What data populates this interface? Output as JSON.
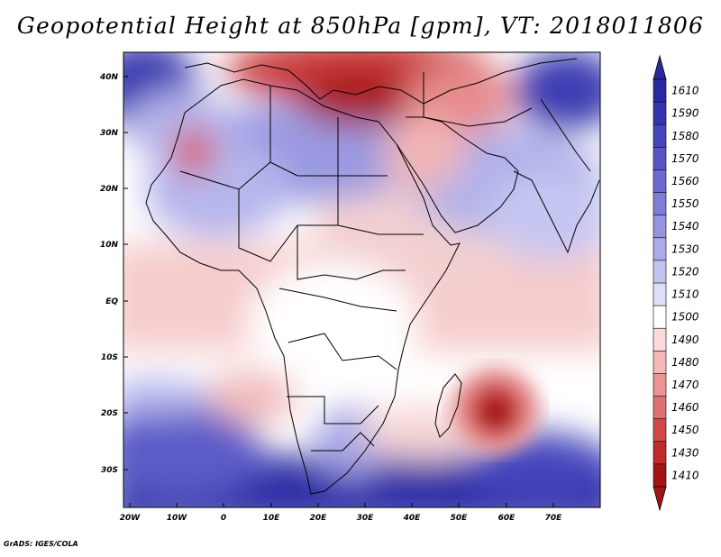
{
  "title": "Geopotential Height at 850hPa [gpm], VT: 2018011806",
  "credit": "GrADS: IGES/COLA",
  "map": {
    "y_axis_labels": [
      "40N",
      "30N",
      "20N",
      "10N",
      "EQ",
      "10S",
      "20S",
      "30S"
    ],
    "x_axis_labels": [
      "20W",
      "10W",
      "0",
      "10E",
      "20E",
      "30E",
      "40E",
      "50E",
      "60E",
      "70E"
    ],
    "lon_range": [
      -22,
      79
    ],
    "lat_range": [
      -36,
      45
    ],
    "features": [
      {
        "name": "mediterranean-high-anomaly",
        "label": "low heights over Mediterranean/Turkey"
      },
      {
        "name": "madagascar-low",
        "label": "tropical low east of Madagascar"
      }
    ]
  },
  "colorbar": {
    "levels": [
      "1610",
      "1590",
      "1580",
      "1570",
      "1560",
      "1550",
      "1540",
      "1530",
      "1520",
      "1510",
      "1500",
      "1490",
      "1480",
      "1470",
      "1460",
      "1450",
      "1430",
      "1410"
    ],
    "colors": [
      "#2a2aa0",
      "#3535b0",
      "#4545bc",
      "#5656c6",
      "#6a6acf",
      "#7e7ed8",
      "#9494e0",
      "#ababe8",
      "#c4c4f0",
      "#dedef7",
      "#ffffff",
      "#fadada",
      "#f5b9b9",
      "#ec9393",
      "#e06f6f",
      "#d04848",
      "#c02a2a",
      "#a31515"
    ],
    "cap_top_color": "#2a2aa0",
    "cap_bottom_color": "#a31515"
  }
}
